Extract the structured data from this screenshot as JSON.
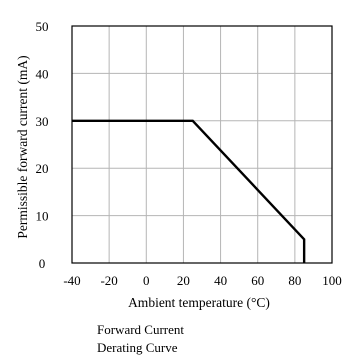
{
  "chart_data": {
    "type": "line",
    "xlabel": "Ambient temperature (°C)",
    "ylabel": "Permissible forward current (mA)",
    "xlim": [
      -40,
      100
    ],
    "ylim": [
      0,
      50
    ],
    "x_ticks": [
      -40,
      -20,
      0,
      20,
      40,
      60,
      80,
      100
    ],
    "y_ticks": [
      0,
      10,
      20,
      30,
      40,
      50
    ],
    "grid": true,
    "series": [
      {
        "x": [
          -40,
          25,
          85,
          85
        ],
        "y": [
          30,
          30,
          5,
          0
        ]
      }
    ],
    "caption": [
      "Forward Current",
      "Derating  Curve"
    ]
  }
}
